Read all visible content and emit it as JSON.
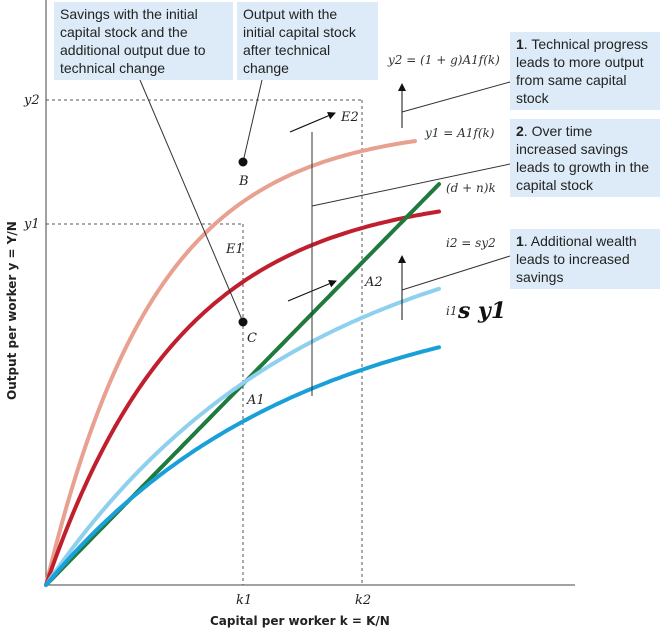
{
  "chart_data": {
    "type": "line",
    "title": "",
    "xlabel": "Capital per worker k = K/N",
    "ylabel": "Output per worker y = Y/N",
    "x_ticks": [
      "k1",
      "k2"
    ],
    "y_ticks": [
      "y2",
      "y1"
    ],
    "grid": false,
    "series": [
      {
        "name": "y2 = (1 + g)A1f(k)",
        "color": "#e8a090"
      },
      {
        "name": "y1 = A1f(k)",
        "color": "#c0202e"
      },
      {
        "name": "(d + n)k",
        "color": "#1f7a3e"
      },
      {
        "name": "i2 = sy2",
        "color": "#8fd0ef"
      },
      {
        "name": "i1",
        "color": "#1aa0d8"
      }
    ],
    "handwritten_label": "s y1",
    "points": [
      {
        "label": "B"
      },
      {
        "label": "E2"
      },
      {
        "label": "E1"
      },
      {
        "label": "C"
      },
      {
        "label": "A2"
      },
      {
        "label": "A1"
      }
    ]
  },
  "callouts": {
    "savings_initial": "Savings with the initial capital stock and the additional output due to technical change",
    "output_initial": "Output with the initial capital stock after technical change",
    "tech_num": "1",
    "tech_text": ". Technical progress leads to more output from same capital stock",
    "time_num": "2",
    "time_text": ". Over time increased savings leads to growth in the capital stock",
    "wealth_num": "1",
    "wealth_text": ". Additional wealth leads to increased savings"
  }
}
